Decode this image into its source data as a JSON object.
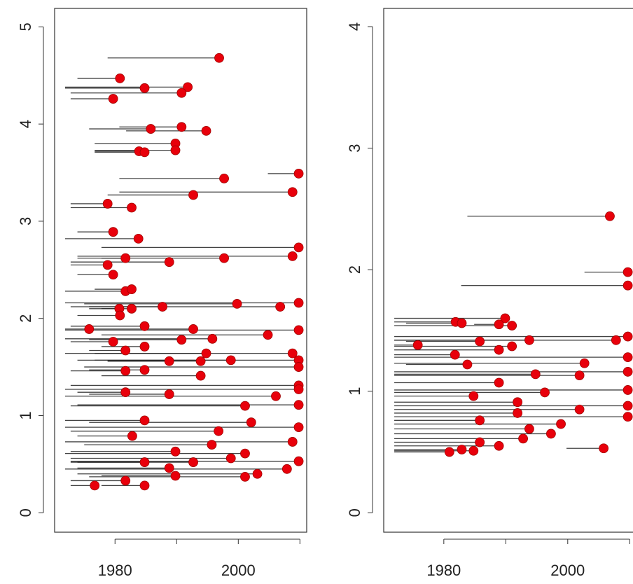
{
  "chart_data": [
    {
      "type": "segments",
      "color": "#e8000b",
      "line_color": "#222222",
      "xlim": [
        1970.2,
        2011.1
      ],
      "ylim": [
        -0.2,
        5.19
      ],
      "xticks": [
        1980,
        {
          "value": 1990,
          "label": null
        },
        2000,
        {
          "value": 2010,
          "label": null
        }
      ],
      "yticks": [
        0,
        1,
        2,
        3,
        4,
        5
      ],
      "x_start": [
        1978.8,
        1973.9,
        1971.9,
        1971.9,
        1972.8,
        1972.8,
        1975.8,
        1980.7,
        1981.8,
        1976.7,
        1976.7,
        1976.7,
        1976.7,
        1980.7,
        2004.8,
        1980.7,
        1978.8,
        1972.8,
        1972.8,
        1973.9,
        1971.9,
        1977.8,
        1973.9,
        1977.8,
        1973.9,
        1972.8,
        1972.8,
        1973.9,
        1971.9,
        1976.7,
        1971.9,
        1975.0,
        1972.8,
        1975.8,
        1977.8,
        1975.8,
        1973.9,
        1971.9,
        1975.8,
        1971.9,
        1972.8,
        1977.8,
        1971.9,
        1975.8,
        1972.8,
        1977.8,
        1975.8,
        1976.7,
        1971.9,
        1973.9,
        1978.8,
        1978.8,
        1975.0,
        1976.7,
        1972.8,
        1975.8,
        1977.8,
        1972.8,
        1971.9,
        1973.9,
        1975.8,
        1971.9,
        1972.8,
        1973.9,
        1971.9,
        1975.8,
        1971.9,
        1972.8,
        1973.9,
        1971.9,
        1975.0,
        1972.8,
        1971.9,
        1972.8,
        1973.9,
        1972.8,
        1972.8,
        1971.9,
        1973.9,
        1975.8,
        1973.9,
        1977.8,
        1972.8,
        1972.8,
        1977.8
      ],
      "x_end": [
        1996.9,
        1980.8,
        1984.8,
        1991.8,
        1990.8,
        1979.7,
        1985.8,
        1990.8,
        1994.8,
        1989.8,
        1989.8,
        1983.9,
        1984.8,
        1997.7,
        2009.8,
        2008.8,
        1992.7,
        1978.8,
        1982.7,
        1979.7,
        1983.8,
        2009.8,
        2008.8,
        1997.7,
        1981.7,
        1988.8,
        1978.8,
        1979.7,
        1981.7,
        1982.7,
        2009.8,
        1999.8,
        2006.8,
        1987.7,
        1982.7,
        1980.7,
        1980.8,
        2009.8,
        1992.7,
        1975.8,
        1984.8,
        2004.8,
        1995.8,
        1990.8,
        1979.7,
        1984.8,
        1981.7,
        1994.8,
        2008.8,
        2009.8,
        1993.9,
        1988.8,
        2009.8,
        1998.8,
        1981.7,
        1984.8,
        1993.9,
        2009.8,
        2009.8,
        1981.7,
        1988.8,
        2006.1,
        2001.1,
        2009.8,
        1984.8,
        2002.1,
        2009.8,
        1996.8,
        1982.8,
        2008.8,
        1995.7,
        1989.8,
        2001.1,
        2009.8,
        1984.8,
        1992.7,
        1998.8,
        2007.9,
        1988.8,
        2001.1,
        2003.1,
        1989.8,
        1981.7,
        1976.7,
        1984.8
      ],
      "values": [
        4.68,
        4.47,
        4.37,
        4.38,
        4.32,
        4.26,
        3.95,
        3.97,
        3.93,
        3.8,
        3.73,
        3.72,
        3.71,
        3.44,
        3.49,
        3.3,
        3.27,
        3.18,
        3.14,
        2.89,
        2.82,
        2.73,
        2.64,
        2.62,
        2.62,
        2.58,
        2.55,
        2.45,
        2.28,
        2.3,
        2.16,
        2.15,
        2.12,
        2.12,
        2.1,
        2.1,
        2.03,
        1.88,
        1.89,
        1.89,
        1.92,
        1.83,
        1.79,
        1.78,
        1.76,
        1.71,
        1.67,
        1.64,
        1.64,
        1.57,
        1.56,
        1.56,
        1.5,
        1.57,
        1.46,
        1.47,
        1.41,
        1.31,
        1.27,
        1.24,
        1.22,
        1.2,
        1.1,
        1.11,
        0.95,
        0.93,
        0.88,
        0.84,
        0.79,
        0.73,
        0.7,
        0.63,
        0.61,
        0.53,
        0.52,
        0.52,
        0.56,
        0.45,
        0.46,
        0.37,
        0.4,
        0.38,
        0.33,
        0.28,
        0.28
      ]
    },
    {
      "type": "segments",
      "color": "#e8000b",
      "line_color": "#222222",
      "xlim": [
        1970.3,
        2011.1
      ],
      "ylim": [
        -0.16,
        4.15
      ],
      "xticks": [
        1980,
        {
          "value": 1990,
          "label": null
        },
        2000,
        {
          "value": 2010,
          "label": null
        }
      ],
      "yticks": [
        0,
        1,
        2,
        3,
        4
      ],
      "x_start": [
        1983.8,
        2002.7,
        1982.8,
        1972.0,
        1972.0,
        1973.9,
        1972.0,
        1984.9,
        1972.0,
        1972.0,
        1973.9,
        1972.0,
        1972.0,
        1972.0,
        1972.0,
        1972.0,
        1972.0,
        1972.0,
        1973.9,
        1972.0,
        1972.0,
        1972.0,
        1972.0,
        1972.0,
        1972.0,
        1972.0,
        1972.0,
        1972.0,
        1972.0,
        1972.0,
        1972.0,
        1972.0,
        1972.0,
        1972.0,
        1972.0,
        1972.0,
        1972.0,
        1972.0,
        1972.0,
        1999.8,
        1972.0,
        1972.0
      ],
      "x_end": [
        2006.8,
        2009.7,
        2009.7,
        1989.9,
        1981.9,
        1982.9,
        1991.0,
        1988.9,
        2009.7,
        1993.8,
        1985.8,
        2007.8,
        1991.0,
        1975.8,
        1988.9,
        1981.8,
        2009.7,
        2002.7,
        1983.8,
        2009.7,
        1994.8,
        2001.9,
        1988.9,
        2009.7,
        1996.3,
        1984.8,
        1991.9,
        2009.7,
        2001.9,
        1991.9,
        2009.7,
        1985.8,
        1998.9,
        1993.8,
        1997.3,
        1992.8,
        1985.8,
        1988.9,
        1982.9,
        2005.8,
        1980.9,
        1984.8
      ],
      "values": [
        2.44,
        1.98,
        1.87,
        1.6,
        1.57,
        1.56,
        1.54,
        1.55,
        1.45,
        1.42,
        1.41,
        1.42,
        1.37,
        1.38,
        1.34,
        1.3,
        1.28,
        1.23,
        1.22,
        1.16,
        1.14,
        1.13,
        1.07,
        1.01,
        0.99,
        0.96,
        0.91,
        0.88,
        0.85,
        0.82,
        0.79,
        0.76,
        0.73,
        0.69,
        0.65,
        0.61,
        0.58,
        0.55,
        0.52,
        0.53,
        0.5,
        0.51
      ]
    }
  ]
}
